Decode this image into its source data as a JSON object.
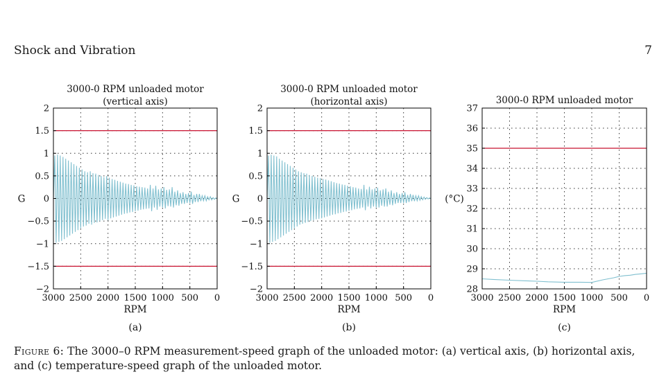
{
  "header": {
    "journal": "Shock and Vibration",
    "page_number": "7"
  },
  "caption": {
    "label": "Figure 6:",
    "text": "The 3000–0 RPM measurement-speed graph of the unloaded motor: (a) vertical axis, (b) horizontal axis, and (c) temperature-speed graph of the unloaded motor."
  },
  "colors": {
    "signal": "#7fbfcf",
    "limit": "#c8102e",
    "axis": "#000000"
  },
  "chart_data": [
    {
      "id": "a",
      "type": "line",
      "title": [
        "3000-0 RPM unloaded motor",
        "(vertical axis)"
      ],
      "ylabel": "G",
      "xlabel": "RPM",
      "panel_label": "(a)",
      "xlim": [
        3000,
        0
      ],
      "ylim": [
        -2,
        2
      ],
      "xticks": [
        3000,
        2500,
        2000,
        1500,
        1000,
        500,
        0
      ],
      "yticks": [
        -2,
        -1.5,
        -1,
        -0.5,
        0,
        0.5,
        1,
        1.5,
        2
      ],
      "ytick_labels": [
        "−2",
        "−1.5",
        "−1",
        "−0.5",
        "0",
        "0.5",
        "1",
        "1.5",
        "2"
      ],
      "grid": true,
      "limit_lines": [
        1.5,
        -1.5
      ],
      "series": [
        {
          "x": [
            3000,
            2975,
            2950,
            2925,
            2900,
            2875,
            2850,
            2825,
            2800,
            2775,
            2750,
            2725,
            2700,
            2675,
            2650,
            2625,
            2600,
            2575,
            2550,
            2525,
            2500,
            2475,
            2450,
            2425,
            2400,
            2375,
            2350,
            2325,
            2300,
            2275,
            2250,
            2225,
            2200,
            2175,
            2150,
            2125,
            2100,
            2075,
            2050,
            2025,
            2000,
            1975,
            1950,
            1925,
            1900,
            1875,
            1850,
            1825,
            1800,
            1775,
            1750,
            1725,
            1700,
            1675,
            1650,
            1625,
            1600,
            1575,
            1550,
            1525,
            1500,
            1475,
            1450,
            1425,
            1400,
            1375,
            1350,
            1325,
            1300,
            1275,
            1250,
            1225,
            1200,
            1175,
            1150,
            1125,
            1100,
            1075,
            1050,
            1025,
            1000,
            975,
            950,
            925,
            900,
            875,
            850,
            825,
            800,
            775,
            750,
            725,
            700,
            675,
            650,
            625,
            600,
            575,
            550,
            525,
            500,
            475,
            450,
            425,
            400,
            375,
            350,
            325,
            300,
            275,
            250,
            225,
            200,
            175,
            150,
            125,
            100,
            75,
            50,
            25,
            0
          ],
          "y": [
            0.0,
            0.95,
            -0.98,
            0.97,
            -0.96,
            0.95,
            -0.94,
            0.92,
            -0.9,
            0.88,
            -0.86,
            0.84,
            -0.82,
            0.8,
            -0.78,
            0.76,
            -0.74,
            0.72,
            -0.7,
            0.68,
            -0.66,
            0.64,
            -0.62,
            0.6,
            -0.6,
            0.58,
            -0.56,
            0.6,
            -0.58,
            0.56,
            -0.54,
            0.55,
            -0.53,
            0.52,
            -0.5,
            0.5,
            -0.48,
            0.47,
            -0.45,
            0.5,
            -0.48,
            0.46,
            -0.44,
            0.43,
            -0.42,
            0.41,
            -0.4,
            0.39,
            -0.38,
            0.37,
            -0.36,
            0.35,
            -0.34,
            0.33,
            -0.33,
            0.32,
            -0.31,
            0.3,
            -0.3,
            0.29,
            -0.28,
            0.27,
            -0.27,
            0.26,
            -0.25,
            0.25,
            -0.24,
            0.24,
            -0.23,
            0.22,
            -0.22,
            0.3,
            -0.28,
            0.22,
            -0.2,
            0.28,
            -0.25,
            0.2,
            -0.18,
            0.22,
            -0.2,
            0.25,
            -0.22,
            0.19,
            -0.17,
            0.2,
            -0.18,
            0.25,
            -0.2,
            0.15,
            -0.15,
            0.18,
            -0.16,
            0.12,
            -0.12,
            0.14,
            -0.12,
            0.1,
            -0.1,
            0.12,
            -0.1,
            0.15,
            -0.12,
            0.08,
            -0.08,
            0.1,
            -0.08,
            0.1,
            -0.06,
            0.06,
            -0.05,
            0.06,
            -0.05,
            0.04,
            -0.03,
            0.04,
            -0.03,
            0.02,
            -0.02,
            0.01,
            0.0
          ]
        }
      ]
    },
    {
      "id": "b",
      "type": "line",
      "title": [
        "3000-0 RPM unloaded motor",
        "(horizontal axis)"
      ],
      "ylabel": "G",
      "xlabel": "RPM",
      "panel_label": "(b)",
      "xlim": [
        3000,
        0
      ],
      "ylim": [
        -2,
        2
      ],
      "xticks": [
        3000,
        2500,
        2000,
        1500,
        1000,
        500,
        0
      ],
      "yticks": [
        -2,
        -1.5,
        -1,
        -0.5,
        0,
        0.5,
        1,
        1.5,
        2
      ],
      "ytick_labels": [
        "−2",
        "−1.5",
        "−1",
        "−0.5",
        "0",
        "0.5",
        "1",
        "1.5",
        "2"
      ],
      "grid": true,
      "limit_lines": [
        1.5,
        -1.5
      ],
      "series": [
        {
          "x": [
            3000,
            2975,
            2950,
            2925,
            2900,
            2875,
            2850,
            2825,
            2800,
            2775,
            2750,
            2725,
            2700,
            2675,
            2650,
            2625,
            2600,
            2575,
            2550,
            2525,
            2500,
            2475,
            2450,
            2425,
            2400,
            2375,
            2350,
            2325,
            2300,
            2275,
            2250,
            2225,
            2200,
            2175,
            2150,
            2125,
            2100,
            2075,
            2050,
            2025,
            2000,
            1975,
            1950,
            1925,
            1900,
            1875,
            1850,
            1825,
            1800,
            1775,
            1750,
            1725,
            1700,
            1675,
            1650,
            1625,
            1600,
            1575,
            1550,
            1525,
            1500,
            1475,
            1450,
            1425,
            1400,
            1375,
            1350,
            1325,
            1300,
            1275,
            1250,
            1225,
            1200,
            1175,
            1150,
            1125,
            1100,
            1075,
            1050,
            1025,
            1000,
            975,
            950,
            925,
            900,
            875,
            850,
            825,
            800,
            775,
            750,
            725,
            700,
            675,
            650,
            625,
            600,
            575,
            550,
            525,
            500,
            475,
            450,
            425,
            400,
            375,
            350,
            325,
            300,
            275,
            250,
            225,
            200,
            175,
            150,
            125,
            100,
            75,
            50,
            25,
            0
          ],
          "y": [
            0.0,
            0.95,
            -0.98,
            0.97,
            -0.96,
            0.95,
            -0.94,
            0.93,
            -0.9,
            0.88,
            -0.86,
            0.84,
            -0.82,
            0.8,
            -0.78,
            0.76,
            -0.74,
            0.72,
            -0.7,
            0.68,
            -0.66,
            0.64,
            -0.62,
            0.6,
            -0.58,
            0.58,
            -0.56,
            0.56,
            -0.54,
            0.55,
            -0.52,
            0.52,
            -0.5,
            0.5,
            -0.48,
            0.48,
            -0.46,
            0.46,
            -0.45,
            0.45,
            -0.44,
            0.43,
            -0.42,
            0.42,
            -0.4,
            0.4,
            -0.38,
            0.38,
            -0.36,
            0.36,
            -0.35,
            0.34,
            -0.33,
            0.33,
            -0.32,
            0.31,
            -0.3,
            0.3,
            -0.29,
            0.28,
            -0.27,
            0.27,
            -0.26,
            0.25,
            -0.24,
            0.24,
            -0.23,
            0.22,
            -0.22,
            0.21,
            -0.2,
            0.3,
            -0.26,
            0.2,
            -0.18,
            0.26,
            -0.22,
            0.2,
            -0.18,
            0.22,
            -0.2,
            0.24,
            -0.2,
            0.18,
            -0.16,
            0.2,
            -0.18,
            0.22,
            -0.18,
            0.15,
            -0.14,
            0.18,
            -0.15,
            0.12,
            -0.12,
            0.14,
            -0.1,
            0.1,
            -0.1,
            0.12,
            -0.1,
            0.14,
            -0.1,
            0.08,
            -0.08,
            0.1,
            -0.06,
            0.08,
            -0.06,
            0.06,
            -0.05,
            0.06,
            -0.04,
            0.04,
            -0.03,
            0.03,
            -0.02,
            0.02,
            -0.01,
            0.01,
            0.0
          ]
        }
      ]
    },
    {
      "id": "c",
      "type": "line",
      "title": [
        "3000-0 RPM unloaded motor"
      ],
      "ylabel": "(°C)",
      "xlabel": "RPM",
      "panel_label": "(c)",
      "xlim": [
        3000,
        0
      ],
      "ylim": [
        28,
        37
      ],
      "xticks": [
        3000,
        2500,
        2000,
        1500,
        1000,
        500,
        0
      ],
      "yticks": [
        28,
        29,
        30,
        31,
        32,
        33,
        34,
        35,
        36,
        37
      ],
      "ytick_labels": [
        "28",
        "29",
        "30",
        "31",
        "32",
        "33",
        "34",
        "35",
        "36",
        "37"
      ],
      "grid": true,
      "limit_lines": [
        35
      ],
      "series": [
        {
          "x": [
            3000,
            2800,
            2500,
            2200,
            2000,
            1800,
            1500,
            1200,
            1000,
            800,
            600,
            500,
            400,
            300,
            200,
            100,
            0
          ],
          "y": [
            28.5,
            28.47,
            28.43,
            28.4,
            28.38,
            28.35,
            28.33,
            28.33,
            28.32,
            28.45,
            28.55,
            28.62,
            28.66,
            28.68,
            28.72,
            28.75,
            28.78
          ]
        }
      ]
    }
  ]
}
